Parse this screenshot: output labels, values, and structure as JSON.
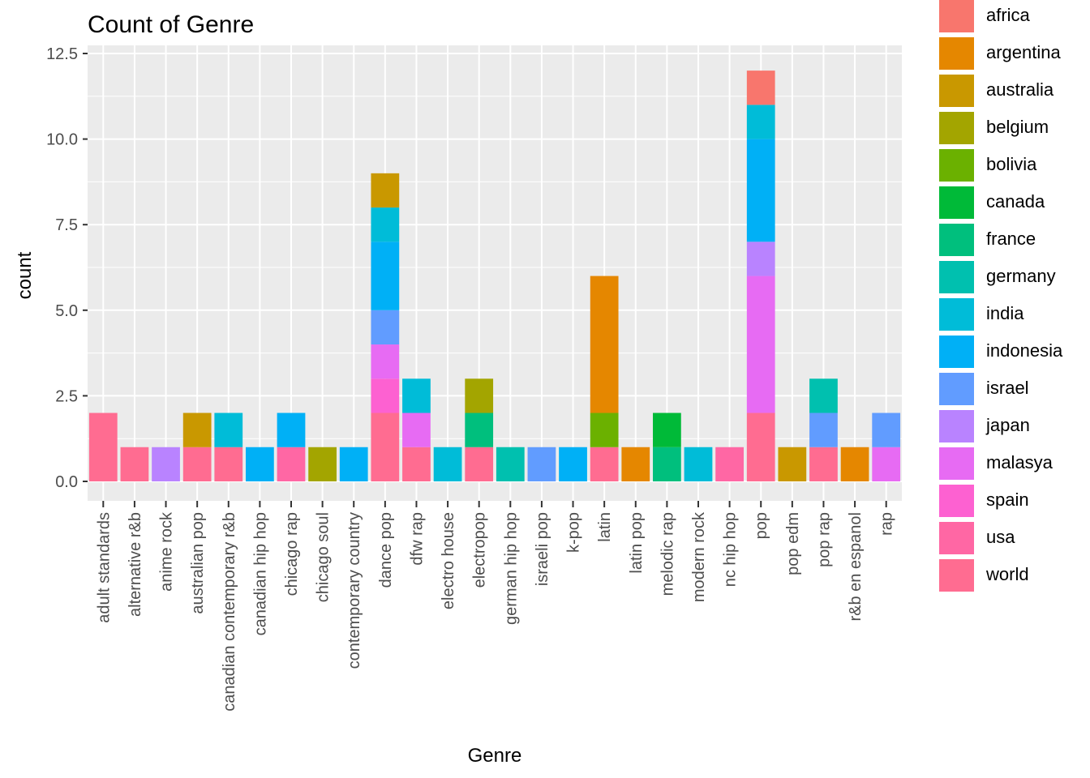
{
  "chart_data": {
    "type": "bar",
    "stacked": true,
    "title": "Count of Genre",
    "xlabel": "Genre",
    "ylabel": "count",
    "ylim": [
      0,
      12.5
    ],
    "y_ticks": [
      0,
      2.5,
      5,
      7.5,
      10,
      12.5
    ],
    "y_tick_labels": [
      "0.0",
      "2.5",
      "5.0",
      "7.5",
      "10.0",
      "12.5"
    ],
    "grid": true,
    "legend_position": "right",
    "categories": [
      "adult standards",
      "alternative r&b",
      "anime rock",
      "australian pop",
      "canadian contemporary r&b",
      "canadian hip hop",
      "chicago rap",
      "chicago soul",
      "contemporary country",
      "dance pop",
      "dfw rap",
      "electro house",
      "electropop",
      "german hip hop",
      "israeli pop",
      "k-pop",
      "latin",
      "latin pop",
      "melodic rap",
      "modern rock",
      "nc hip hop",
      "pop",
      "pop edm",
      "pop rap",
      "r&b en espanol",
      "rap"
    ],
    "series": [
      {
        "name": "africa",
        "color": "#F8766D",
        "values": [
          0,
          0,
          0,
          0,
          0,
          0,
          0,
          0,
          0,
          0,
          0,
          0,
          0,
          0,
          0,
          0,
          0,
          0,
          0,
          0,
          0,
          1,
          0,
          0,
          0,
          0
        ]
      },
      {
        "name": "argentina",
        "color": "#E58700",
        "values": [
          0,
          0,
          0,
          0,
          0,
          0,
          0,
          0,
          0,
          0,
          0,
          0,
          0,
          0,
          0,
          0,
          4,
          1,
          0,
          0,
          0,
          0,
          0,
          0,
          1,
          0
        ]
      },
      {
        "name": "australia",
        "color": "#C99800",
        "values": [
          0,
          0,
          0,
          1,
          0,
          0,
          0,
          0,
          0,
          1,
          0,
          0,
          0,
          0,
          0,
          0,
          0,
          0,
          0,
          0,
          0,
          0,
          1,
          0,
          0,
          0
        ]
      },
      {
        "name": "belgium",
        "color": "#A3A500",
        "values": [
          0,
          0,
          0,
          0,
          0,
          0,
          0,
          1,
          0,
          0,
          0,
          0,
          1,
          0,
          0,
          0,
          0,
          0,
          0,
          0,
          0,
          0,
          0,
          0,
          0,
          0
        ]
      },
      {
        "name": "bolivia",
        "color": "#6BB100",
        "values": [
          0,
          0,
          0,
          0,
          0,
          0,
          0,
          0,
          0,
          0,
          0,
          0,
          0,
          0,
          0,
          0,
          1,
          0,
          0,
          0,
          0,
          0,
          0,
          0,
          0,
          0
        ]
      },
      {
        "name": "canada",
        "color": "#00BA38",
        "values": [
          0,
          0,
          0,
          0,
          0,
          0,
          0,
          0,
          0,
          0,
          0,
          0,
          0,
          0,
          0,
          0,
          0,
          0,
          1,
          0,
          0,
          0,
          0,
          0,
          0,
          0
        ]
      },
      {
        "name": "france",
        "color": "#00BF7D",
        "values": [
          0,
          0,
          0,
          0,
          0,
          0,
          0,
          0,
          0,
          0,
          0,
          0,
          1,
          0,
          0,
          0,
          0,
          0,
          1,
          0,
          0,
          0,
          0,
          0,
          0,
          0
        ]
      },
      {
        "name": "germany",
        "color": "#00C0AF",
        "values": [
          0,
          0,
          0,
          0,
          0,
          0,
          0,
          0,
          0,
          0,
          0,
          0,
          0,
          1,
          0,
          0,
          0,
          0,
          0,
          0,
          0,
          0,
          0,
          1,
          0,
          0
        ]
      },
      {
        "name": "india",
        "color": "#00BCD8",
        "values": [
          0,
          0,
          0,
          0,
          1,
          0,
          0,
          0,
          0,
          1,
          1,
          1,
          0,
          0,
          0,
          0,
          0,
          0,
          0,
          1,
          0,
          1,
          0,
          0,
          0,
          0
        ]
      },
      {
        "name": "indonesia",
        "color": "#00B0F6",
        "values": [
          0,
          0,
          0,
          0,
          0,
          1,
          1,
          0,
          1,
          2,
          0,
          0,
          0,
          0,
          0,
          1,
          0,
          0,
          0,
          0,
          0,
          3,
          0,
          0,
          0,
          0
        ]
      },
      {
        "name": "israel",
        "color": "#619CFF",
        "values": [
          0,
          0,
          0,
          0,
          0,
          0,
          0,
          0,
          0,
          1,
          0,
          0,
          0,
          0,
          1,
          0,
          0,
          0,
          0,
          0,
          0,
          0,
          0,
          1,
          0,
          1
        ]
      },
      {
        "name": "japan",
        "color": "#B983FF",
        "values": [
          0,
          0,
          1,
          0,
          0,
          0,
          0,
          0,
          0,
          0,
          0,
          0,
          0,
          0,
          0,
          0,
          0,
          0,
          0,
          0,
          0,
          1,
          0,
          0,
          0,
          0
        ]
      },
      {
        "name": "malasya",
        "color": "#E76BF3",
        "values": [
          0,
          0,
          0,
          0,
          0,
          0,
          0,
          0,
          0,
          1,
          1,
          0,
          0,
          0,
          0,
          0,
          0,
          0,
          0,
          0,
          0,
          4,
          0,
          0,
          0,
          1
        ]
      },
      {
        "name": "spain",
        "color": "#FD61D1",
        "values": [
          0,
          0,
          0,
          0,
          0,
          0,
          0,
          0,
          0,
          1,
          0,
          0,
          0,
          0,
          0,
          0,
          0,
          0,
          0,
          0,
          0,
          0,
          0,
          0,
          0,
          0
        ]
      },
      {
        "name": "usa",
        "color": "#FF67A4",
        "values": [
          0,
          0,
          0,
          0,
          0,
          0,
          1,
          0,
          0,
          0,
          0,
          0,
          0,
          0,
          0,
          0,
          0,
          0,
          0,
          0,
          1,
          0,
          0,
          0,
          0,
          0
        ]
      },
      {
        "name": "world",
        "color": "#FF6C91",
        "values": [
          2,
          1,
          0,
          1,
          1,
          0,
          0,
          0,
          0,
          2,
          1,
          0,
          1,
          0,
          0,
          0,
          1,
          0,
          0,
          0,
          0,
          2,
          0,
          1,
          0,
          0
        ]
      }
    ]
  }
}
